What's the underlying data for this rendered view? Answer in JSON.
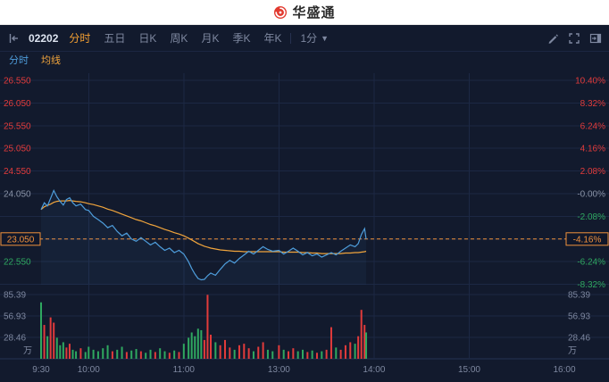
{
  "brand": {
    "name": "华盛通",
    "logo_color": "#e23a2f"
  },
  "toolbar": {
    "stock_code": "02202",
    "tabs": [
      {
        "label": "分时",
        "active": true
      },
      {
        "label": "五日",
        "active": false
      },
      {
        "label": "日K",
        "active": false
      },
      {
        "label": "周K",
        "active": false
      },
      {
        "label": "月K",
        "active": false
      },
      {
        "label": "季K",
        "active": false
      },
      {
        "label": "年K",
        "active": false
      }
    ],
    "period_label": "1分",
    "icons": [
      "collapse-panel-icon",
      "pencil-icon",
      "fullscreen-icon",
      "panel-right-icon"
    ]
  },
  "legend": [
    {
      "label": "分时",
      "color": "#4e9ddb"
    },
    {
      "label": "均线",
      "color": "#f0a43c"
    }
  ],
  "chart_data": {
    "type": "line",
    "symbol": "02202",
    "series": [
      {
        "name": "分时",
        "color": "#4e9ddb"
      },
      {
        "name": "均线",
        "color": "#f0a43c"
      }
    ],
    "prev_close": 24.05,
    "current": {
      "price_label": "23.050",
      "pct_label": "-4.16%",
      "value": 23.05
    },
    "y_top_value": 26.55,
    "y_step": 0.5,
    "y_axis_rows": [
      {
        "price": "26.550",
        "pct": "10.40%",
        "tone": "up"
      },
      {
        "price": "26.050",
        "pct": "8.32%",
        "tone": "up"
      },
      {
        "price": "25.550",
        "pct": "6.24%",
        "tone": "up"
      },
      {
        "price": "25.050",
        "pct": "4.16%",
        "tone": "up"
      },
      {
        "price": "24.550",
        "pct": "2.08%",
        "tone": "up"
      },
      {
        "price": "24.050",
        "pct": "-0.00%",
        "tone": "flat"
      },
      {
        "price": "",
        "pct": "-2.08%",
        "tone": "down"
      },
      {
        "price": "",
        "pct": "",
        "tone": "current"
      },
      {
        "price": "22.550",
        "pct": "-6.24%",
        "tone": "down"
      },
      {
        "price": "",
        "pct": "-8.32%",
        "tone": "down"
      }
    ],
    "volume_axis": {
      "labels": [
        "85.39",
        "56.93",
        "28.46"
      ],
      "unit": "万",
      "row_value": 28.46
    },
    "x_axis": {
      "labels": [
        "9:30",
        "10:00",
        "11:00",
        "13:00",
        "14:00",
        "15:00",
        "16:00"
      ],
      "minutes": [
        0,
        30,
        90,
        150,
        210,
        270,
        330
      ],
      "total_minutes": 330
    },
    "t": [
      0,
      2,
      4,
      6,
      8,
      10,
      12,
      14,
      16,
      18,
      20,
      22,
      25,
      28,
      30,
      33,
      36,
      39,
      42,
      45,
      48,
      51,
      54,
      57,
      60,
      63,
      66,
      69,
      72,
      75,
      78,
      81,
      84,
      87,
      90,
      93,
      95,
      97,
      99,
      101,
      103,
      105,
      107,
      110,
      113,
      116,
      119,
      122,
      125,
      128,
      131,
      134,
      137,
      140,
      143,
      146,
      150,
      153,
      156,
      159,
      162,
      165,
      168,
      171,
      174,
      177,
      180,
      183,
      186,
      189,
      192,
      195,
      198,
      200,
      202,
      204,
      205
    ],
    "price": [
      23.7,
      23.85,
      23.78,
      23.95,
      24.12,
      23.98,
      23.88,
      23.8,
      23.92,
      23.96,
      23.85,
      23.78,
      23.82,
      23.7,
      23.68,
      23.55,
      23.48,
      23.4,
      23.3,
      23.35,
      23.22,
      23.12,
      23.18,
      23.05,
      23.0,
      23.08,
      23.0,
      22.92,
      22.98,
      22.88,
      22.8,
      22.85,
      22.75,
      22.8,
      22.72,
      22.55,
      22.4,
      22.28,
      22.18,
      22.15,
      22.16,
      22.24,
      22.3,
      22.25,
      22.38,
      22.5,
      22.58,
      22.52,
      22.62,
      22.7,
      22.78,
      22.72,
      22.8,
      22.88,
      22.82,
      22.78,
      22.8,
      22.72,
      22.78,
      22.85,
      22.78,
      22.7,
      22.75,
      22.68,
      22.72,
      22.65,
      22.7,
      22.75,
      22.7,
      22.78,
      22.85,
      22.92,
      22.88,
      22.95,
      23.15,
      23.28,
      23.05
    ],
    "ma": [
      23.7,
      23.76,
      23.79,
      23.82,
      23.86,
      23.88,
      23.89,
      23.89,
      23.89,
      23.9,
      23.89,
      23.88,
      23.87,
      23.85,
      23.83,
      23.81,
      23.78,
      23.75,
      23.71,
      23.68,
      23.64,
      23.6,
      23.56,
      23.52,
      23.48,
      23.45,
      23.41,
      23.37,
      23.34,
      23.3,
      23.26,
      23.23,
      23.19,
      23.16,
      23.12,
      23.07,
      23.03,
      22.99,
      22.95,
      22.92,
      22.89,
      22.87,
      22.85,
      22.83,
      22.81,
      22.8,
      22.79,
      22.78,
      22.78,
      22.77,
      22.77,
      22.77,
      22.77,
      22.77,
      22.77,
      22.77,
      22.77,
      22.76,
      22.76,
      22.76,
      22.76,
      22.75,
      22.75,
      22.74,
      22.74,
      22.73,
      22.73,
      22.73,
      22.73,
      22.73,
      22.74,
      22.74,
      22.75,
      22.75,
      22.76,
      22.77,
      22.78
    ],
    "volume": [
      75,
      45,
      30,
      55,
      48,
      28,
      18,
      22,
      15,
      20,
      12,
      10,
      14,
      9,
      16,
      12,
      10,
      14,
      18,
      10,
      12,
      16,
      9,
      11,
      13,
      10,
      8,
      12,
      9,
      14,
      10,
      8,
      11,
      9,
      20,
      28,
      35,
      30,
      40,
      38,
      25,
      85,
      32,
      22,
      18,
      25,
      15,
      12,
      18,
      20,
      14,
      10,
      16,
      22,
      12,
      10,
      18,
      12,
      10,
      14,
      10,
      12,
      9,
      11,
      8,
      10,
      12,
      42,
      15,
      12,
      18,
      22,
      20,
      30,
      65,
      45,
      35
    ],
    "colors": {
      "up": "#e23b3b",
      "down": "#2fa860",
      "flat": "#8a93a6",
      "current": "#f0913c",
      "grid": "#1c2844",
      "axis_text": "#7e88a0",
      "line": "#4e9ddb",
      "ma": "#f0a43c"
    }
  }
}
